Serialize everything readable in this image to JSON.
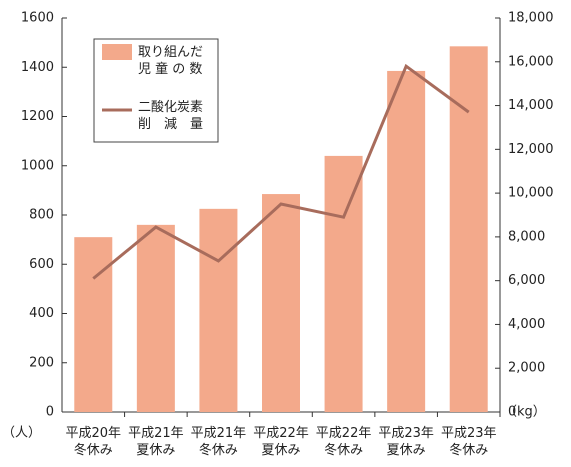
{
  "chart_data": {
    "type": "bar_line",
    "categories": [
      "平成20年\n冬休み",
      "平成21年\n夏休み",
      "平成21年\n冬休み",
      "平成22年\n夏休み",
      "平成22年\n冬休み",
      "平成23年\n夏休み",
      "平成23年\n冬休み"
    ],
    "series": [
      {
        "name": "取り組んだ\n児 童 の 数",
        "type": "bar",
        "color": "#f3a98b",
        "values": [
          710,
          760,
          825,
          885,
          1040,
          1385,
          1485
        ]
      },
      {
        "name": "二酸化炭素\n削　減　量",
        "type": "line",
        "axis": "y2",
        "color": "#a86c5c",
        "values": [
          6100,
          8450,
          6900,
          9500,
          8900,
          15800,
          13700
        ]
      }
    ],
    "ylim": [
      0,
      1600
    ],
    "yticks": [
      0,
      200,
      400,
      600,
      800,
      1000,
      1200,
      1400,
      1600
    ],
    "y2lim": [
      0,
      18000
    ],
    "y2ticks": [
      0,
      {
        "value": 2000,
        "label": "2,000"
      },
      {
        "value": 4000,
        "label": "4,000"
      },
      {
        "value": 6000,
        "label": "6,000"
      },
      {
        "value": 8000,
        "label": "8,000"
      },
      {
        "value": 10000,
        "label": "10,000"
      },
      {
        "value": 12000,
        "label": "12,000"
      },
      {
        "value": 14000,
        "label": "14,000"
      },
      {
        "value": 16000,
        "label": "16,000"
      },
      {
        "value": 18000,
        "label": "18,000"
      }
    ],
    "y_unit": "（人）",
    "y2_unit": "（kg）",
    "legend": "upper left",
    "grid": false
  }
}
